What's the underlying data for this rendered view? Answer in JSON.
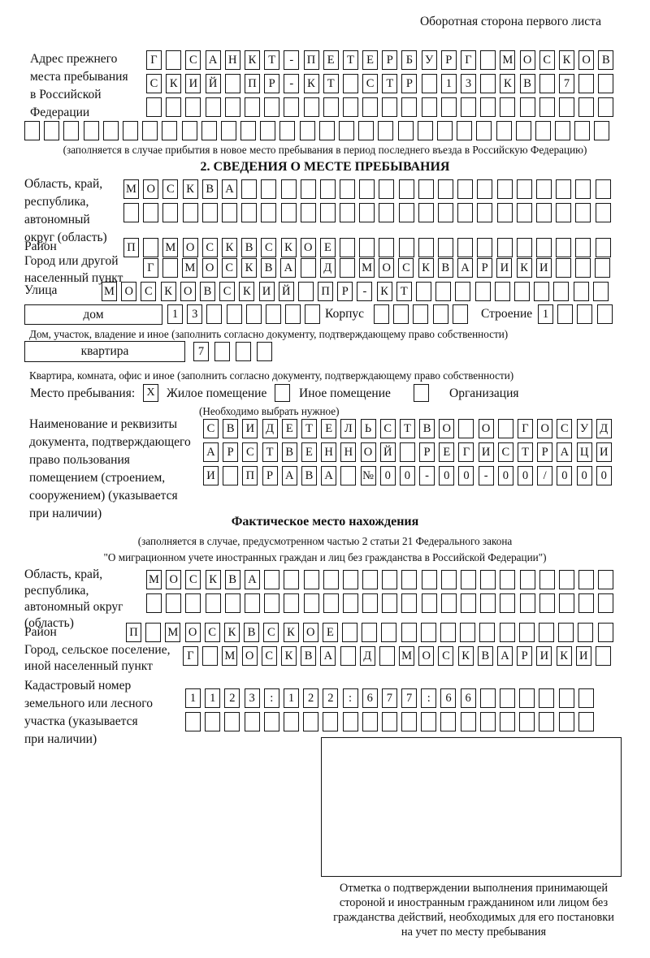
{
  "page": {
    "corner_note": "Оборотная сторона первого листа",
    "colors": {
      "ink": "#141414",
      "paper": "#ffffff"
    }
  },
  "prev_address": {
    "label_lines": [
      "Адрес прежнего",
      "места пребывания",
      "в Российской",
      "Федерации"
    ],
    "rows": [
      {
        "cells": "Г САНКТ-ПЕТЕРБУРГ МОСКОВ",
        "len": 24
      },
      {
        "cells": "СКИЙ ПР-КТ СТР 13 КВ 7",
        "len": 24
      },
      {
        "cells": "",
        "len": 24
      },
      {
        "cells": "",
        "len": 30
      }
    ],
    "note": "(заполняется в случае прибытия в новое место пребывания в период последнего въезда в Российскую Федерацию)"
  },
  "section2": {
    "heading": "2. СВЕДЕНИЯ О МЕСТЕ ПРЕБЫВАНИЯ",
    "oblast": {
      "label_lines": [
        "Область, край,",
        "республика,",
        "автономный",
        "округ (область)"
      ],
      "rows": [
        {
          "cells": "МОСКВА",
          "len": 25
        },
        {
          "cells": "",
          "len": 25
        }
      ]
    },
    "rayon": {
      "label": "Район",
      "row": {
        "cells": "П МОСКВСКОЕ",
        "len": 25
      }
    },
    "gorod": {
      "label_lines": [
        "Город или другой",
        "населенный пункт"
      ],
      "row": {
        "cells": "Г МОСКВА Д МОСКВАРИКИ",
        "len": 24
      }
    },
    "ulitsa": {
      "label": "Улица",
      "row": {
        "cells": "МОСКОВСКИЙ ПР-КТ",
        "len": 26
      }
    },
    "dom": {
      "box_label": "дом",
      "row": {
        "cells": "13",
        "len": 8
      },
      "korpus_label": "Корпус",
      "korpus_row": {
        "cells": "",
        "len": 5
      },
      "stroenie_label": "Строение",
      "stroenie_row": {
        "cells": "1",
        "len": 4
      }
    },
    "dom_note": "Дом, участок, владение и иное (заполнить согласно документу, подтверждающему право собственности)",
    "kvartira": {
      "box_label": "квартира",
      "row": {
        "cells": "7",
        "len": 4
      }
    },
    "kvartira_note": "Квартира, комната, офис и иное (заполнить согласно документу, подтверждающему право собственности)",
    "mesto": {
      "label": "Место пребывания:",
      "options": [
        {
          "label": "Жилое помещение",
          "checked": "X"
        },
        {
          "label": "Иное помещение",
          "checked": ""
        },
        {
          "label": "Организация",
          "checked": ""
        }
      ],
      "note": "(Необходимо выбрать нужное)"
    },
    "document": {
      "label_lines": [
        "Наименование и реквизиты",
        "документа, подтверждающего",
        "право пользования",
        "помещением (строением,",
        "сооружением) (указывается",
        "при наличии)"
      ],
      "rows": [
        {
          "cells": "СВИДЕТЕЛЬСТВО О ГОСУД",
          "len": 21
        },
        {
          "cells": "АРСТВЕННОЙ РЕГИСТРАЦИ",
          "len": 21
        },
        {
          "cells": "И ПРАВА №00-00-00/000",
          "len": 21
        }
      ]
    }
  },
  "fact_section": {
    "heading": "Фактическое место нахождения",
    "note_lines": [
      "(заполняется в случае, предусмотренном частью 2 статьи 21 Федерального закона",
      "\"О миграционном учете иностранных граждан и лиц без гражданства в Российской Федерации\")"
    ],
    "oblast": {
      "label_lines": [
        "Область, край,",
        "республика,",
        "автономный округ",
        "(область)"
      ],
      "rows": [
        {
          "cells": "МОСКВА",
          "len": 24
        },
        {
          "cells": "",
          "len": 24
        }
      ]
    },
    "rayon": {
      "label": "Район",
      "row": {
        "cells": "П МОСКВСКОЕ",
        "len": 25
      }
    },
    "gorod": {
      "label_lines": [
        "Город, сельское поселение,",
        "иной населенный пункт"
      ],
      "row": {
        "cells": "Г МОСКВА Д МОСКВАРИКИ",
        "len": 22
      }
    },
    "kadastr": {
      "label_lines": [
        "Кадастровый номер",
        "земельного или лесного",
        "участка (указывается",
        "при наличии)"
      ],
      "rows": [
        {
          "cells": "1123:122:677:66",
          "len": 21
        },
        {
          "cells": "",
          "len": 21
        }
      ]
    },
    "stamp_caption_lines": [
      "Отметка о подтверждении выполнения принимающей",
      "стороной и иностранным гражданином или лицом без",
      "гражданства действий, необходимых для его постановки",
      "на учет по месту пребывания"
    ]
  }
}
